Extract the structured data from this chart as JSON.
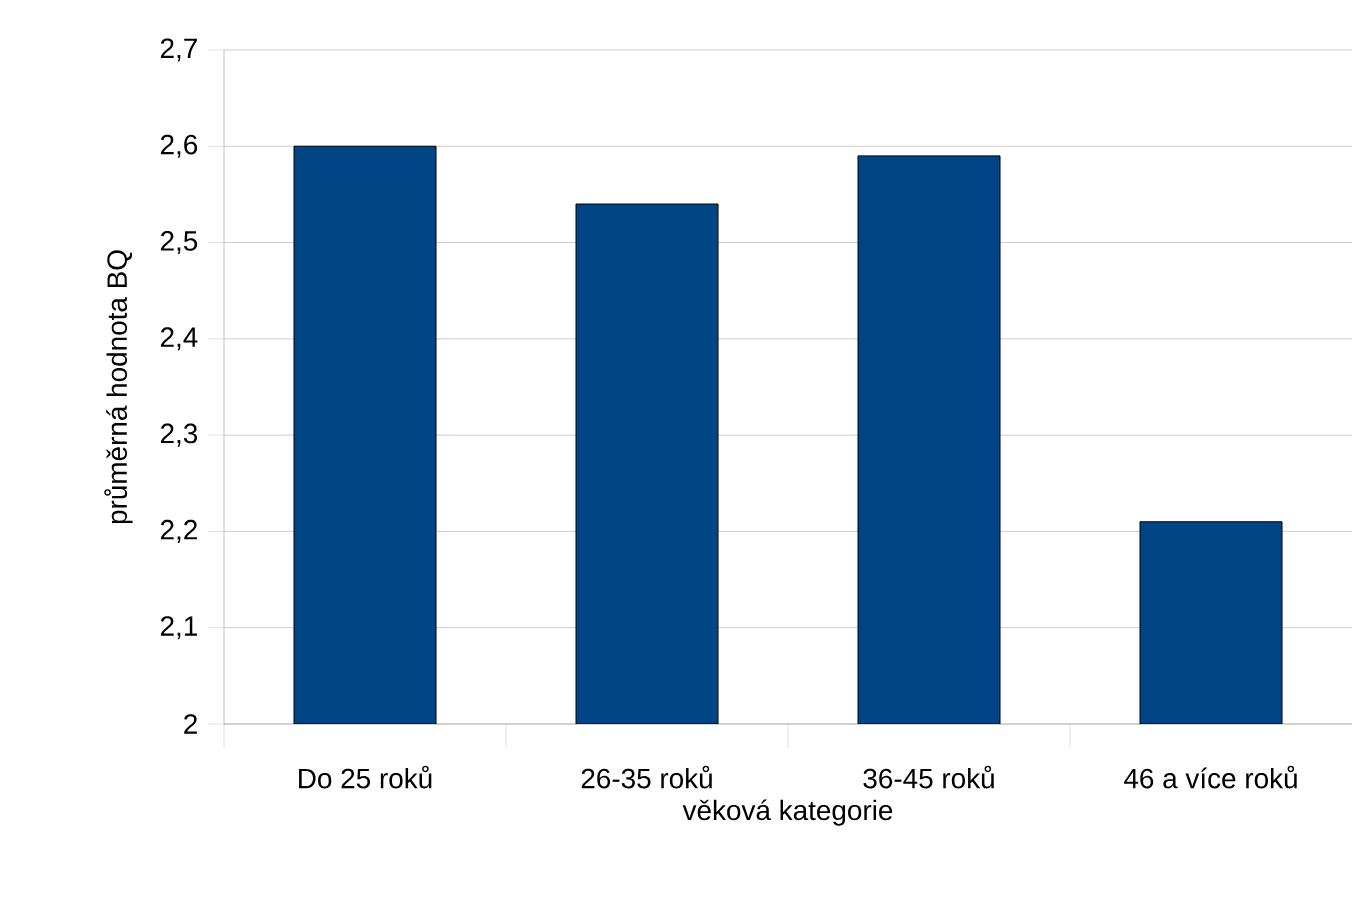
{
  "chart_data": {
    "type": "bar",
    "xlabel": "věková kategorie",
    "ylabel": "průměrná hodnota BQ",
    "categories": [
      "Do 25 roků",
      "26-35 roků",
      "36-45 roků",
      "46 a více roků"
    ],
    "values": [
      2.6,
      2.54,
      2.59,
      2.21
    ],
    "color": "#004586",
    "ylim": [
      2,
      2.7
    ],
    "yticks": [
      2,
      {
        "value": 2.1,
        "label": "2,1"
      },
      {
        "value": 2.2,
        "label": "2,2"
      },
      {
        "value": 2.3,
        "label": "2,3"
      },
      {
        "value": 2.4,
        "label": "2,4"
      },
      {
        "value": 2.5,
        "label": "2,5"
      },
      {
        "value": 2.6,
        "label": "2,6"
      },
      {
        "value": 2.7,
        "label": "2,7"
      }
    ],
    "grid": "y"
  }
}
